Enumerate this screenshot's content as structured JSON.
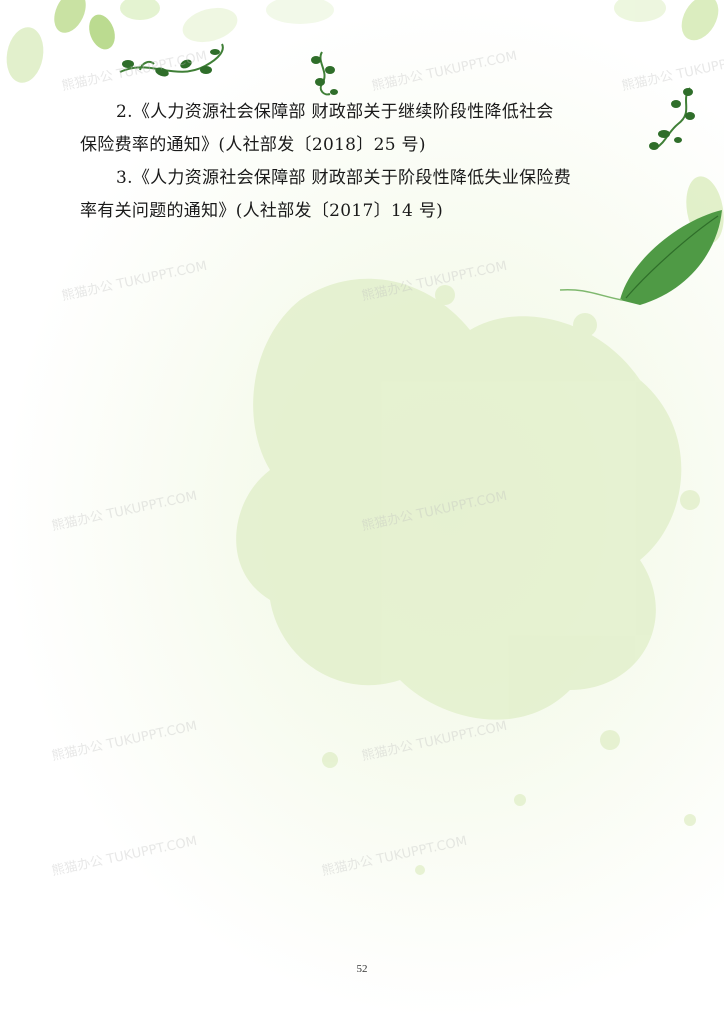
{
  "document": {
    "paragraphs": [
      {
        "line1": "2.《人力资源社会保障部 财政部关于继续阶段性降低社会",
        "line2": "保险费率的通知》(人社部发〔2018〕25 号)"
      },
      {
        "line1": "3.《人力资源社会保障部 财政部关于阶段性降低失业保险费",
        "line2": "率有关问题的通知》(人社部发〔2017〕14 号)"
      }
    ],
    "page_number": "52"
  },
  "watermark": {
    "text": "熊猫办公 TUKUPPT.COM"
  },
  "decorations": {
    "leaf_color": "#4f9a45",
    "light_leaf_color": "#cfe6a8",
    "splash_color": "#e3f0cc"
  }
}
